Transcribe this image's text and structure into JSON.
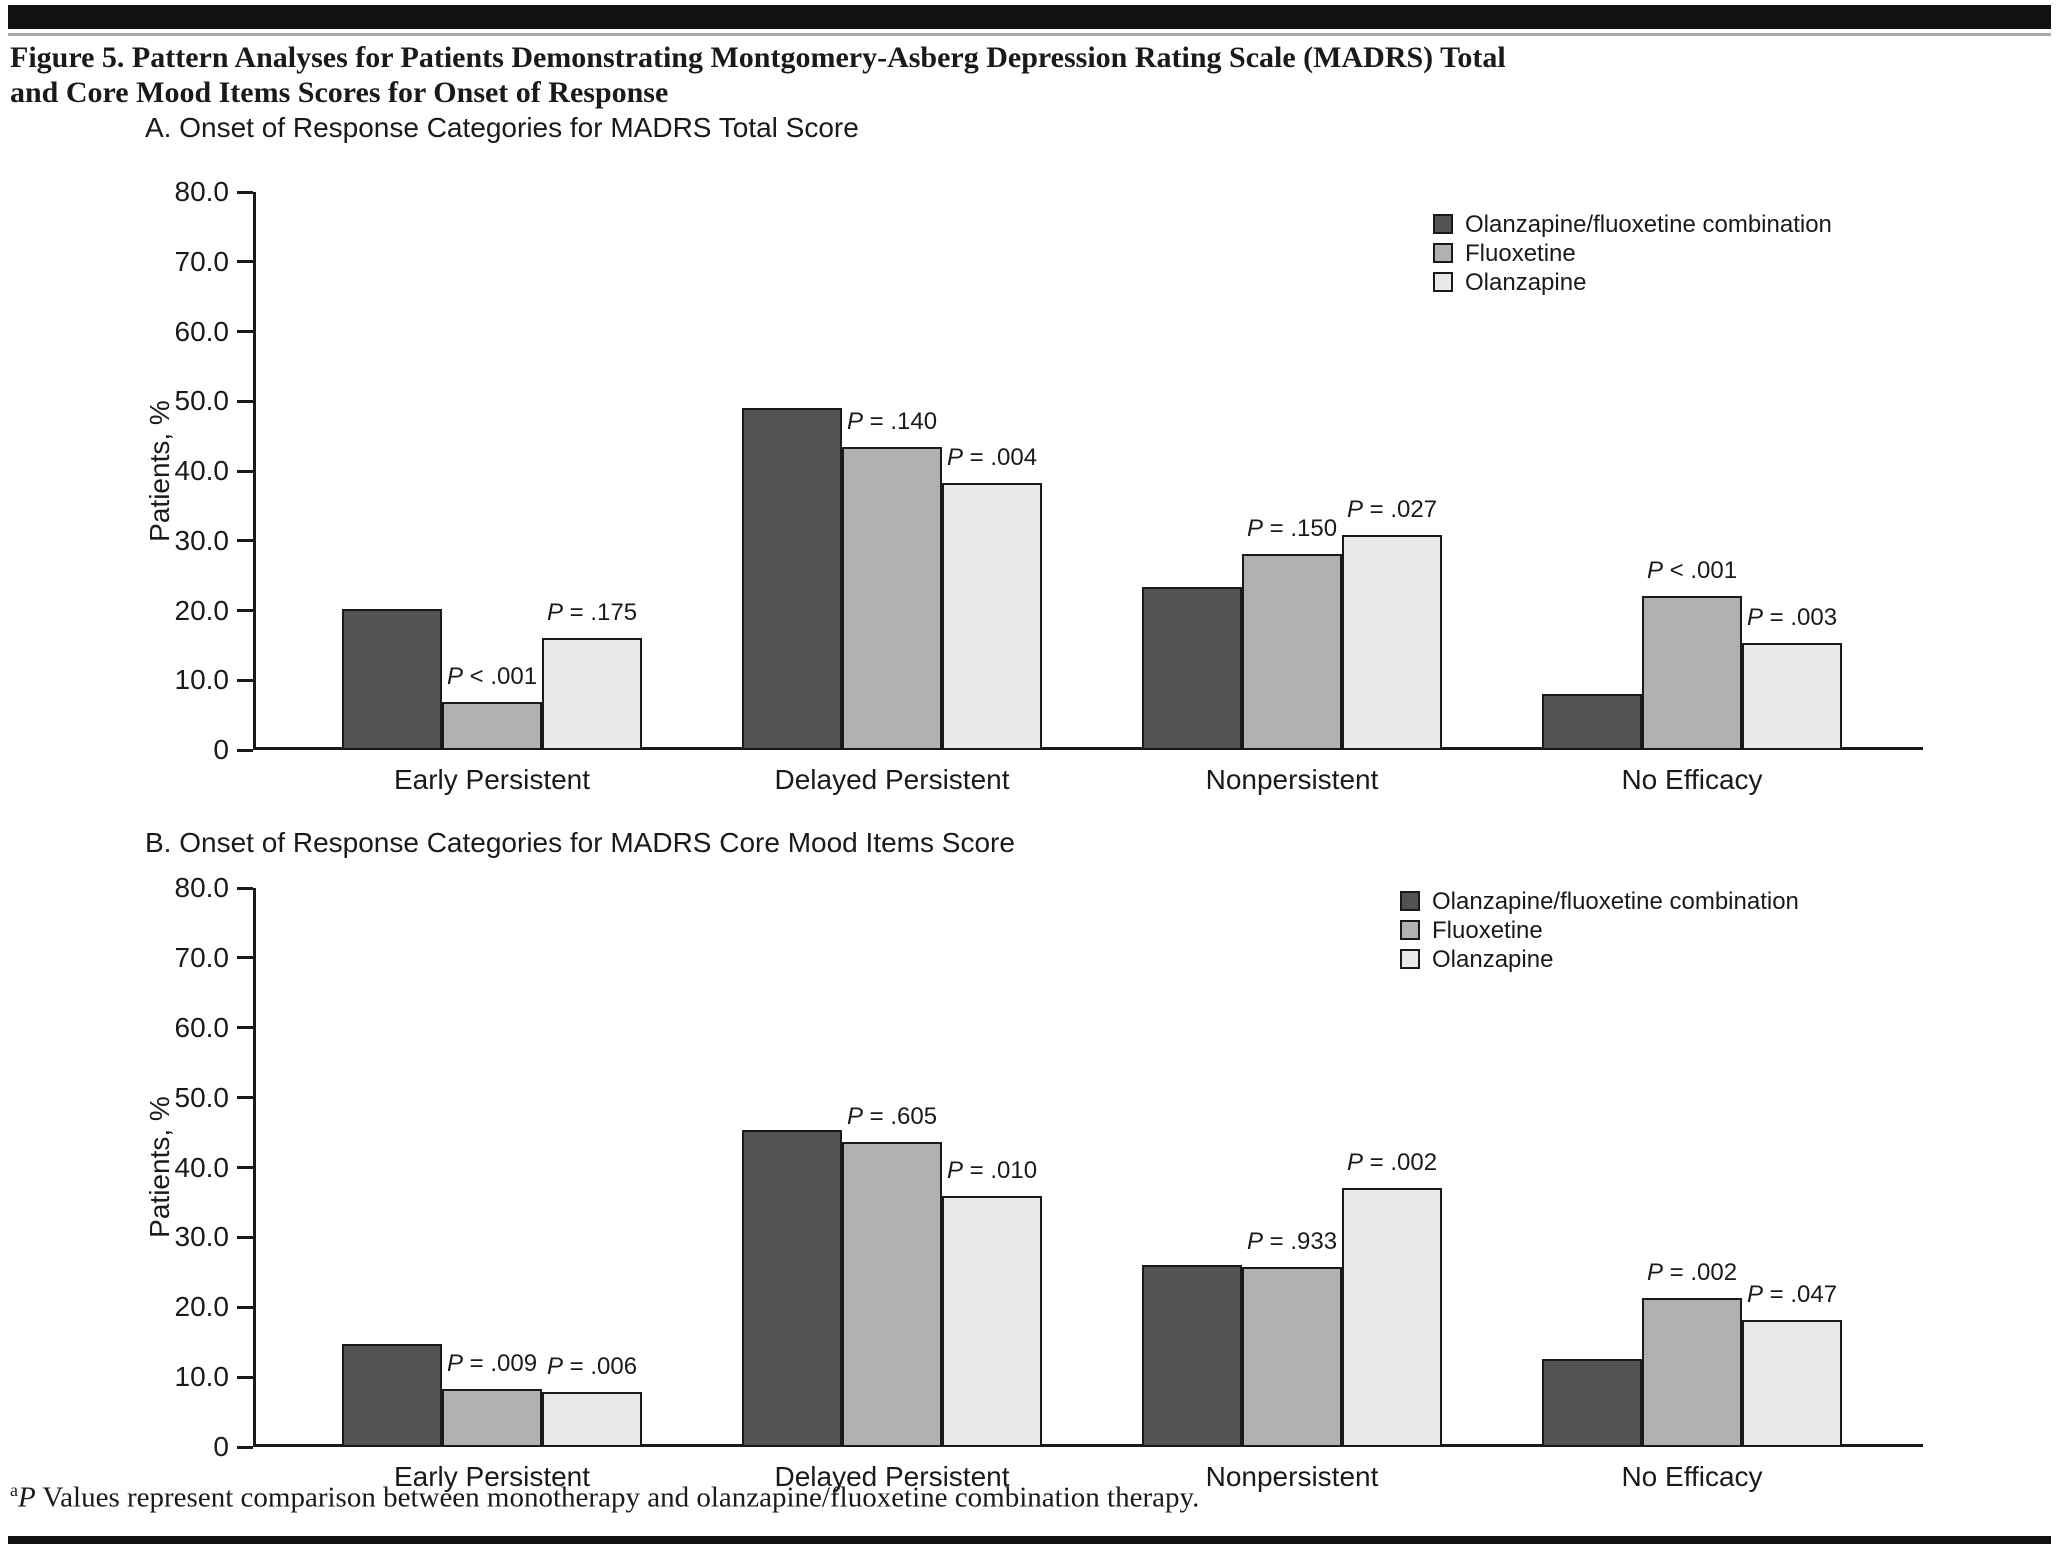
{
  "page": {
    "title": "Figure 5. Pattern Analyses for Patients Demonstrating Montgomery-Asberg Depression Rating Scale (MADRS) Total and Core Mood Items Scores for Onset of Response",
    "footnote": {
      "superscript": "a",
      "italic_lead": "P",
      "text": " Values represent comparison between monotherapy and olanzapine/fluoxetine combination therapy."
    }
  },
  "colors": {
    "ofc": "#535353",
    "fluoxetine": "#b1b1b1",
    "olanzapine": "#e9e9e9",
    "axis": "#1a1a1a"
  },
  "legend": {
    "items": [
      {
        "key": "ofc",
        "label": "Olanzapine/fluoxetine combination"
      },
      {
        "key": "fluoxetine",
        "label": "Fluoxetine"
      },
      {
        "key": "olanzapine",
        "label": "Olanzapine"
      }
    ]
  },
  "chart_data": [
    {
      "id": "panel-a",
      "type": "bar",
      "title": "A. Onset of Response Categories for MADRS Total Score",
      "ylabel": "Patients, %",
      "ylim": [
        0,
        80
      ],
      "yticks": [
        "80.0",
        "70.0",
        "60.0",
        "50.0",
        "40.0",
        "30.0",
        "20.0",
        "10.0",
        "0"
      ],
      "grid": false,
      "legend_position": "upper right",
      "categories": [
        "Early Persistent",
        "Delayed Persistent",
        "Nonpersistent",
        "No Efficacy"
      ],
      "series": [
        {
          "name": "Olanzapine/fluoxetine combination",
          "key": "ofc",
          "values": [
            20.2,
            49.0,
            23.4,
            8.0
          ],
          "p_values": [
            null,
            null,
            null,
            null
          ]
        },
        {
          "name": "Fluoxetine",
          "key": "fluoxetine",
          "values": [
            6.9,
            43.5,
            28.1,
            22.1
          ],
          "p_values": [
            "P < .001",
            "P = .140",
            "P = .150",
            "P < .001"
          ]
        },
        {
          "name": "Olanzapine",
          "key": "olanzapine",
          "values": [
            16.1,
            38.3,
            30.8,
            15.3
          ],
          "p_values": [
            "P = .175",
            "P = .004",
            "P = .027",
            "P = .003"
          ]
        }
      ]
    },
    {
      "id": "panel-b",
      "type": "bar",
      "title": "B. Onset of Response Categories for MADRS Core Mood Items Score",
      "ylabel": "Patients, %",
      "ylim": [
        0,
        80
      ],
      "yticks": [
        "80.0",
        "70.0",
        "60.0",
        "50.0",
        "40.0",
        "30.0",
        "20.0",
        "10.0",
        "0"
      ],
      "grid": false,
      "legend_position": "upper right",
      "categories": [
        "Early Persistent",
        "Delayed Persistent",
        "Nonpersistent",
        "No Efficacy"
      ],
      "series": [
        {
          "name": "Olanzapine/fluoxetine combination",
          "key": "ofc",
          "values": [
            14.8,
            45.4,
            26.1,
            12.6
          ],
          "p_values": [
            null,
            null,
            null,
            null
          ]
        },
        {
          "name": "Fluoxetine",
          "key": "fluoxetine",
          "values": [
            8.3,
            43.6,
            25.7,
            21.3
          ],
          "p_values": [
            "P = .009",
            "P = .605",
            "P = .933",
            "P = .002"
          ]
        },
        {
          "name": "Olanzapine",
          "key": "olanzapine",
          "values": [
            7.9,
            35.9,
            37.0,
            18.2
          ],
          "p_values": [
            "P = .006",
            "P = .010",
            "P = .002",
            "P = .047"
          ]
        }
      ]
    }
  ]
}
